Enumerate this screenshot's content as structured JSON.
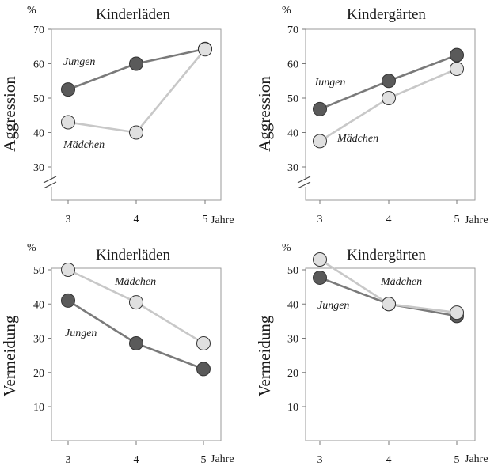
{
  "chart_data": [
    {
      "type": "line",
      "title": "Kinderläden",
      "ylabel": "Aggression",
      "unit_label": "%",
      "x_unit": "Jahre",
      "categories": [
        "3",
        "4",
        "5"
      ],
      "yticks": [
        "70",
        "60",
        "50",
        "40",
        "30"
      ],
      "ylim": [
        30,
        70
      ],
      "axis_break": true,
      "series": [
        {
          "name": "Jungen",
          "values": [
            52.5,
            60,
            64.3
          ],
          "color": "#5a5a5a",
          "line_color": "#7a7a7a"
        },
        {
          "name": "Mädchen",
          "values": [
            43,
            40,
            64.2
          ],
          "color": "#e0e0e0",
          "line_color": "#c8c8c8"
        }
      ]
    },
    {
      "type": "line",
      "title": "Kindergärten",
      "ylabel": "Aggression",
      "unit_label": "%",
      "x_unit": "Jahre",
      "categories": [
        "3",
        "4",
        "5"
      ],
      "yticks": [
        "70",
        "60",
        "50",
        "40",
        "30"
      ],
      "ylim": [
        30,
        70
      ],
      "axis_break": true,
      "series": [
        {
          "name": "Jungen",
          "values": [
            46.8,
            55,
            62.5
          ],
          "color": "#5a5a5a",
          "line_color": "#7a7a7a"
        },
        {
          "name": "Mädchen",
          "values": [
            37.5,
            50,
            58.5
          ],
          "color": "#e0e0e0",
          "line_color": "#c8c8c8"
        }
      ]
    },
    {
      "type": "line",
      "title": "Kinderläden",
      "ylabel": "Vermeidung",
      "unit_label": "%",
      "x_unit": "Jahre",
      "categories": [
        "3",
        "4",
        "5"
      ],
      "yticks": [
        "50",
        "40",
        "30",
        "20",
        "10"
      ],
      "ylim": [
        10,
        50
      ],
      "axis_break": false,
      "series": [
        {
          "name": "Jungen",
          "values": [
            41,
            28.5,
            21
          ],
          "color": "#5a5a5a",
          "line_color": "#7a7a7a"
        },
        {
          "name": "Mädchen",
          "values": [
            50,
            40.5,
            28.5
          ],
          "color": "#e0e0e0",
          "line_color": "#c8c8c8"
        }
      ]
    },
    {
      "type": "line",
      "title": "Kindergärten",
      "ylabel": "Vermeidung",
      "unit_label": "%",
      "x_unit": "Jahre",
      "categories": [
        "3",
        "4",
        "5"
      ],
      "yticks": [
        "50",
        "40",
        "30",
        "20",
        "10"
      ],
      "ylim": [
        10,
        50
      ],
      "axis_break": false,
      "series": [
        {
          "name": "Jungen",
          "values": [
            47.7,
            40,
            36.5
          ],
          "color": "#5a5a5a",
          "line_color": "#7a7a7a"
        },
        {
          "name": "Mädchen",
          "values": [
            53,
            40,
            37.5
          ],
          "color": "#e0e0e0",
          "line_color": "#c8c8c8"
        }
      ]
    }
  ]
}
